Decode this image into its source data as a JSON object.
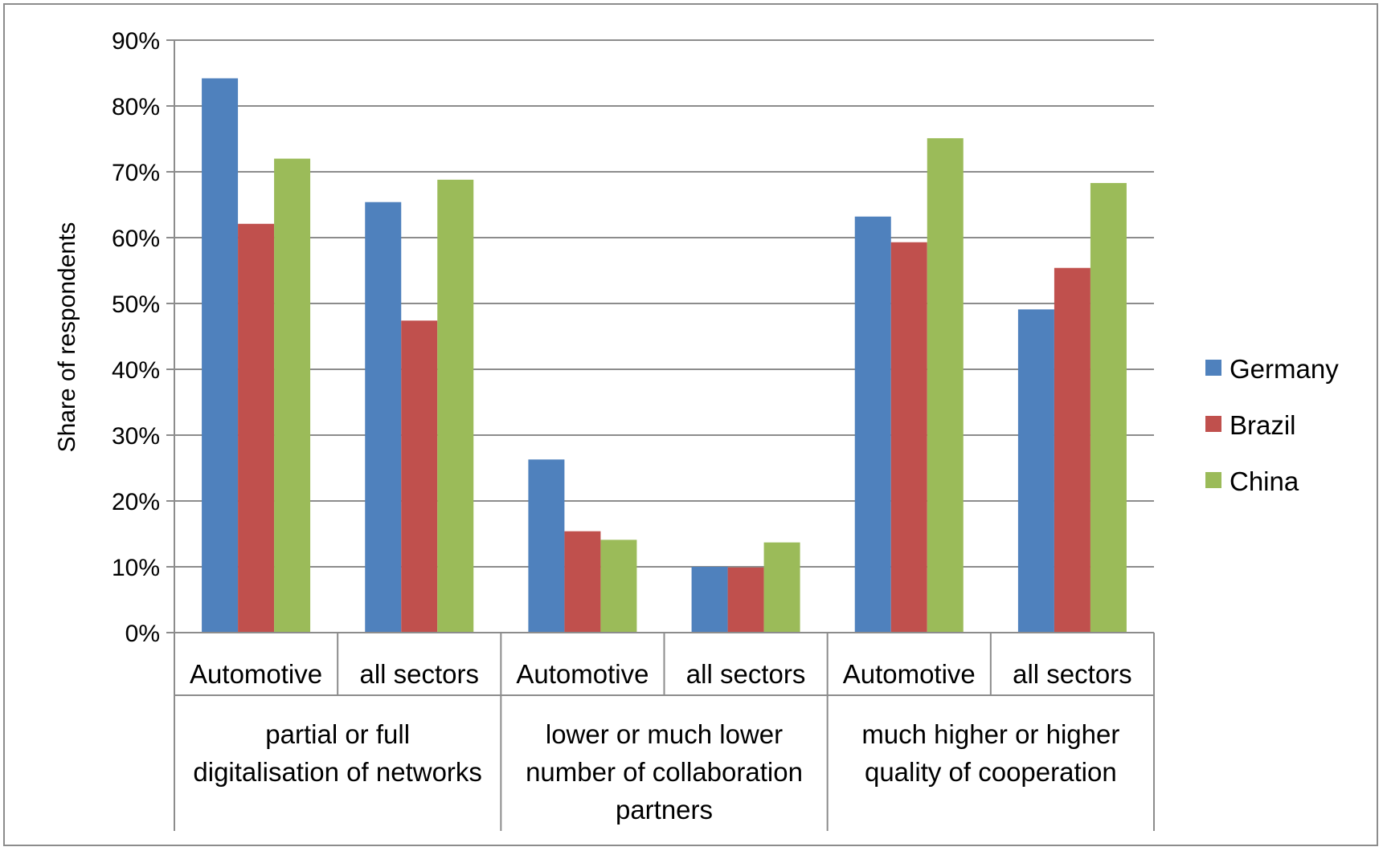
{
  "chart_data": {
    "type": "bar",
    "ylabel": "Share of respondents",
    "ylim": [
      0,
      90
    ],
    "yticks": [
      "0%",
      "10%",
      "20%",
      "30%",
      "40%",
      "50%",
      "60%",
      "70%",
      "80%",
      "90%"
    ],
    "grid": true,
    "legend_position": "right",
    "groups": [
      {
        "label": [
          "partial or full",
          "digitalisation of networks"
        ],
        "categories": [
          "Automotive",
          "all sectors"
        ]
      },
      {
        "label": [
          "lower or much lower",
          "number of collaboration",
          "partners"
        ],
        "categories": [
          "Automotive",
          "all sectors"
        ]
      },
      {
        "label": [
          "much higher or higher",
          "quality of cooperation"
        ],
        "categories": [
          "Automotive",
          "all sectors"
        ]
      }
    ],
    "categories": [
      "Automotive",
      "all sectors",
      "Automotive",
      "all sectors",
      "Automotive",
      "all sectors"
    ],
    "series": [
      {
        "name": "Germany",
        "color": "#4f81bd",
        "values": [
          84.2,
          65.4,
          26.3,
          10.0,
          63.2,
          49.1
        ]
      },
      {
        "name": "Brazil",
        "color": "#c0504d",
        "values": [
          62.1,
          47.4,
          15.4,
          9.9,
          59.3,
          55.4
        ]
      },
      {
        "name": "China",
        "color": "#9bbb59",
        "values": [
          72.0,
          68.8,
          14.1,
          13.7,
          75.1,
          68.3
        ]
      }
    ]
  }
}
